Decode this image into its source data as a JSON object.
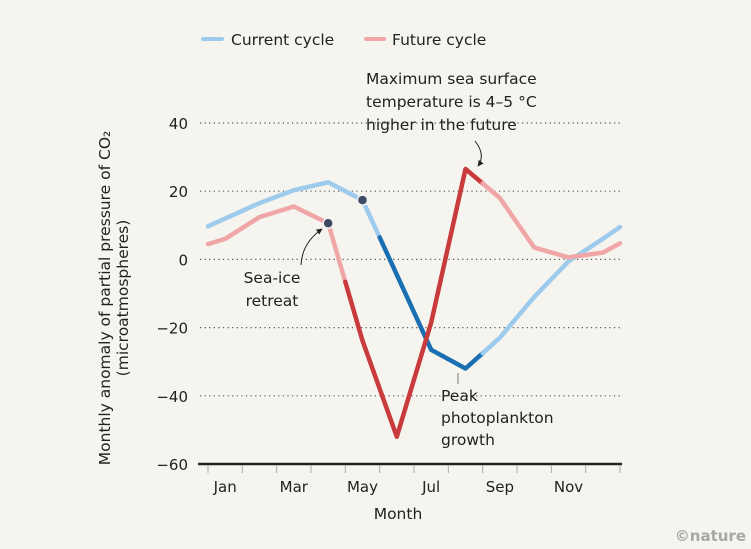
{
  "chart_data": {
    "type": "line",
    "title": "",
    "xlabel": "Month",
    "ylabel": "Monthly anomaly of partial pressure of CO₂",
    "ylabel_units": "(microatmospheres)",
    "ylim": [
      -60,
      40
    ],
    "yticks": [
      40,
      20,
      0,
      -20,
      -40,
      -60
    ],
    "grid": "horizontal-dotted",
    "x_tick_labels": [
      "Jan",
      "Mar",
      "May",
      "Jul",
      "Sep",
      "Nov"
    ],
    "categories": [
      "Jan",
      "Feb",
      "Mar",
      "Apr",
      "May",
      "Jun",
      "Jul",
      "Aug",
      "Sep",
      "Oct",
      "Nov",
      "Dec"
    ],
    "legend": {
      "placement": "top"
    },
    "series": [
      {
        "name": "Current cycle",
        "color": "#9ccbee",
        "highlight_color": "#1a6fb3",
        "values": [
          12,
          16.5,
          20.3,
          22.6,
          17.4,
          -4.5,
          -26.5,
          -32,
          -23,
          -11,
          -0.6,
          6
        ],
        "start_value": 9.7,
        "end_value": 9.5,
        "marker_month": "May",
        "highlight_range": [
          "May",
          "Sep"
        ]
      },
      {
        "name": "Future cycle",
        "color": "#f0a5a6",
        "highlight_color": "#c93a3c",
        "values": [
          6,
          12.4,
          15.5,
          10.6,
          -23.8,
          -52,
          -18.5,
          26.5,
          18,
          3.5,
          0.6,
          2
        ],
        "start_value": 4.5,
        "end_value": 4.7,
        "marker_month": "Apr",
        "highlight_range": [
          "Apr",
          "Sep"
        ]
      }
    ],
    "annotations": [
      {
        "id": "sst",
        "lines": [
          "Maximum sea surface",
          "temperature is 4–5 °C",
          "higher in the future"
        ]
      },
      {
        "id": "seaice",
        "lines": [
          "Sea-ice",
          "retreat"
        ]
      },
      {
        "id": "plankton",
        "lines": [
          "Peak",
          "photoplankton",
          "growth"
        ]
      }
    ]
  },
  "credit": "©nature"
}
